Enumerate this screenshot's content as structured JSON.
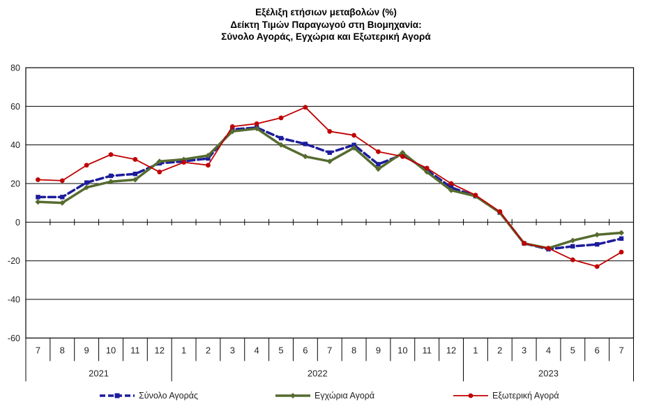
{
  "title": {
    "line1": "Εξέλιξη ετήσιων μεταβολών (%)",
    "line2": "Δείκτη Τιμών Παραγωγού στη Βιομηχανία:",
    "line3": "Σύνολο Αγοράς, Εγχώρια και Εξωτερική Αγορά"
  },
  "chart_data": {
    "type": "line",
    "title": "Εξέλιξη ετήσιων μεταβολών (%) Δείκτη Τιμών Παραγωγού στη Βιομηχανία: Σύνολο Αγοράς, Εγχώρια και Εξωτερική Αγορά",
    "xlabel": "",
    "ylabel": "",
    "ylim": [
      -60,
      80
    ],
    "yticks": [
      80,
      60,
      40,
      20,
      0,
      -20,
      -40,
      -60
    ],
    "grid": "horizontal",
    "grid_color": "#000000",
    "legend_position": "bottom",
    "x_months": [
      "7",
      "8",
      "9",
      "10",
      "11",
      "12",
      "1",
      "2",
      "3",
      "4",
      "5",
      "6",
      "7",
      "8",
      "9",
      "10",
      "11",
      "12",
      "1",
      "2",
      "3",
      "4",
      "5",
      "6",
      "7"
    ],
    "year_groups": [
      {
        "label": "2021",
        "span": 6
      },
      {
        "label": "2022",
        "span": 12
      },
      {
        "label": "2023",
        "span": 7
      }
    ],
    "series": [
      {
        "name": "Σύνολο Αγοράς",
        "color": "#1c1c9c",
        "style": "dashed",
        "marker": "square",
        "values": [
          13,
          13,
          20.5,
          24,
          25,
          30.5,
          31.5,
          33,
          48,
          49,
          43.5,
          40.5,
          36,
          40,
          30,
          35,
          27,
          18,
          13.5,
          5,
          -11,
          -14,
          -12.5,
          -11.5,
          -8.5
        ]
      },
      {
        "name": "Εγχώρια Αγορά",
        "color": "#566B2F",
        "style": "solid",
        "marker": "diamond",
        "values": [
          10.5,
          10,
          18,
          21,
          22,
          31.5,
          32.5,
          34.5,
          47,
          48.5,
          40,
          34,
          31.5,
          38.5,
          27.5,
          36,
          26,
          16.5,
          13.5,
          5,
          -11,
          -13.5,
          -9.5,
          -6.5,
          -5.5
        ]
      },
      {
        "name": "Εξωτερική Αγορά",
        "color": "#C00000",
        "style": "solid-thin",
        "marker": "circle",
        "values": [
          22,
          21.5,
          29.5,
          35,
          32.5,
          26,
          31,
          29.5,
          49.5,
          51,
          54,
          59.5,
          47,
          45,
          36.5,
          34,
          28,
          20,
          14,
          5.5,
          -11,
          -13.5,
          -19.5,
          -23,
          -15.5
        ]
      }
    ]
  }
}
